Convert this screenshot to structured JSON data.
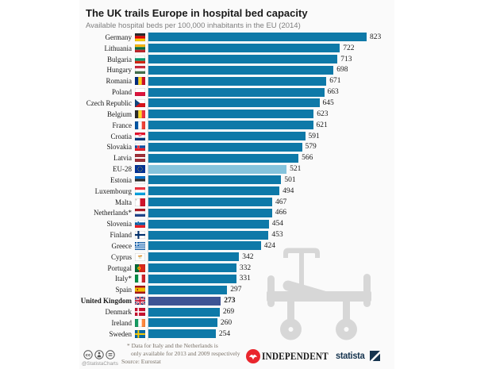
{
  "title": "The UK trails Europe in hospital bed capacity",
  "subtitle": "Available hospital beds per 100,000 inhabitants in the EU (2014)",
  "chart_data": {
    "type": "bar",
    "orientation": "horizontal",
    "title": "The UK trails Europe in hospital bed capacity",
    "xlabel": "Available hospital beds per 100,000 inhabitants (2014)",
    "xlim": [
      0,
      823
    ],
    "grid": false,
    "value_labels": true,
    "categories": [
      "Germany",
      "Lithuania",
      "Bulgaria",
      "Hungary",
      "Romania",
      "Poland",
      "Czech Republic",
      "Belgium",
      "France",
      "Croatia",
      "Slovakia",
      "Latvia",
      "EU-28",
      "Estonia",
      "Luxembourg",
      "Malta",
      "Netherlands*",
      "Slovenia",
      "Finland",
      "Greece",
      "Cyprus",
      "Portugal",
      "Italy*",
      "Spain",
      "United Kingdom",
      "Denmark",
      "Ireland",
      "Sweden"
    ],
    "values": [
      823,
      722,
      713,
      698,
      671,
      663,
      645,
      623,
      621,
      591,
      579,
      566,
      521,
      501,
      494,
      467,
      466,
      454,
      453,
      424,
      342,
      332,
      331,
      297,
      273,
      269,
      260,
      254
    ],
    "flags": [
      "de",
      "lt",
      "bg",
      "hu",
      "ro",
      "pl",
      "cz",
      "be",
      "fr",
      "hr",
      "sk",
      "lv",
      "eu",
      "ee",
      "lu",
      "mt",
      "nl",
      "si",
      "fi",
      "gr",
      "cy",
      "pt",
      "it",
      "es",
      "gb",
      "dk",
      "ie",
      "se"
    ],
    "styles": [
      "default",
      "default",
      "default",
      "default",
      "default",
      "default",
      "default",
      "default",
      "default",
      "default",
      "default",
      "default",
      "eu",
      "default",
      "default",
      "default",
      "default",
      "default",
      "default",
      "default",
      "default",
      "default",
      "default",
      "default",
      "uk",
      "default",
      "default",
      "default"
    ],
    "highlighted": {
      "eu_average": "EU-28",
      "focus": "United Kingdom"
    }
  },
  "colors": {
    "bar_default": "#0e79a8",
    "bar_eu": "#85c3dc",
    "bar_uk": "#3e5494",
    "panel_background": "#fafafa",
    "bed_icon": "#d7d7d7",
    "independent_red": "#e9262d",
    "statista_navy": "#16344f"
  },
  "footer": {
    "license_icons": [
      "cc-icon",
      "attribution-icon",
      "no-derivatives-icon"
    ],
    "handle": "@StatistaCharts",
    "footnote_line1": "* Data for Italy and the Netherlands is",
    "footnote_line2": "only available for 2013 and 2009 respectively",
    "source": "Source: Eurostat",
    "publisher": "INDEPENDENT",
    "brand": "statista"
  }
}
